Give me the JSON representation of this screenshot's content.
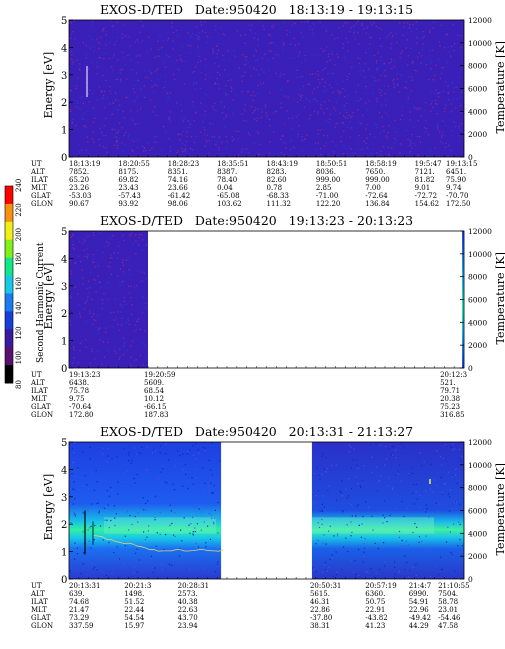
{
  "chart_data": [
    {
      "type": "heatmap",
      "title": "EXOS-D/TED   Date:950420   18:13:19 - 19:13:15",
      "ylabel": "Energy [eV]",
      "y2label": "Temperature [K]",
      "ylim": [
        0,
        5
      ],
      "y2lim": [
        0,
        12000
      ],
      "yticks": [
        "0",
        "1",
        "2",
        "3",
        "4",
        "5"
      ],
      "y2ticks": [
        "0",
        "2000",
        "4000",
        "6000",
        "8000",
        "10000",
        "12000"
      ],
      "coverage": [
        [
          0,
          1
        ]
      ],
      "ephemeris": {
        "labels": [
          "UT",
          "ALT",
          "ILAT",
          "MLT",
          "GLAT",
          "GLON"
        ],
        "columns": [
          [
            "18:13:19",
            "7852.",
            "65.20",
            "23.26",
            "-53.03",
            "90.67"
          ],
          [
            "18:20:55",
            "8175.",
            "69.82",
            "23.43",
            "-57.43",
            "93.92"
          ],
          [
            "18:28:23",
            "8351.",
            "74.16",
            "23.66",
            "-61.42",
            "98.06"
          ],
          [
            "18:35:51",
            "8387.",
            "78.40",
            "0.04",
            "-65.08",
            "103.62"
          ],
          [
            "18:43:19",
            "8283.",
            "82.60",
            "0.78",
            "-68.33",
            "111.32"
          ],
          [
            "18:50:51",
            "8036.",
            "999.00",
            "2.85",
            "-71.00",
            "122.20"
          ],
          [
            "18:58:19",
            "7650.",
            "999.00",
            "7.00",
            "-72.64",
            "136.84"
          ],
          [
            "19:5:47",
            "7121.",
            "81.82",
            "9.01",
            "-72.72",
            "154.62"
          ],
          [
            "19:13:15",
            "6451.",
            "75.90",
            "9.74",
            "-70.70",
            "172.50"
          ]
        ]
      }
    },
    {
      "type": "heatmap",
      "title": "EXOS-D/TED   Date:950420   19:13:23 - 20:13:23",
      "ylabel": "Energy [eV]",
      "y2label": "Temperature [K]",
      "ylim": [
        0,
        5
      ],
      "y2lim": [
        0,
        12000
      ],
      "yticks": [
        "0",
        "1",
        "2",
        "3",
        "4",
        "5"
      ],
      "y2ticks": [
        "0",
        "2000",
        "4000",
        "6000",
        "8000",
        "10000",
        "12000"
      ],
      "coverage": [
        [
          0,
          0.2
        ],
        [
          0.995,
          1
        ]
      ],
      "ephemeris": {
        "labels": [
          "UT",
          "ALT",
          "ILAT",
          "MLT",
          "GLAT",
          "GLON"
        ],
        "columns": [
          [
            "19:13:23",
            "6438.",
            "75.78",
            "9.75",
            "-70.64",
            "172.80"
          ],
          [
            "19:20:59",
            "5609.",
            "68.54",
            "10.12",
            "-66.15",
            "187.83"
          ],
          [
            "20:12:3",
            "521.",
            "79.71",
            "20.38",
            "75.23",
            "316.85"
          ]
        ]
      },
      "colorbar": {
        "label": "Second Harmonic Current",
        "ticks": [
          "80",
          "100",
          "120",
          "140",
          "160",
          "180",
          "200",
          "220",
          "240"
        ],
        "colors": [
          "#000000",
          "#5a1070",
          "#3a1aa0",
          "#1a3cd8",
          "#1a7cf0",
          "#18c8e8",
          "#10e88a",
          "#80f018",
          "#f0f018",
          "#f89010",
          "#ff0000"
        ]
      }
    },
    {
      "type": "heatmap",
      "title": "EXOS-D/TED   Date:950420   20:13:31 - 21:13:27",
      "ylabel": "Energy [eV]",
      "y2label": "Temperature [K]",
      "ylim": [
        0,
        5
      ],
      "y2lim": [
        0,
        12000
      ],
      "yticks": [
        "0",
        "1",
        "2",
        "3",
        "4",
        "5"
      ],
      "y2ticks": [
        "0",
        "2000",
        "4000",
        "6000",
        "8000",
        "10000",
        "12000"
      ],
      "coverage": [
        [
          0,
          0.385
        ],
        [
          0.615,
          1
        ]
      ],
      "ephemeris": {
        "labels": [
          "UT",
          "ALT",
          "ILAT",
          "MLT",
          "GLAT",
          "GLON"
        ],
        "columns": [
          [
            "20:13:31",
            "639.",
            "74.68",
            "21.47",
            "73.29",
            "337.59"
          ],
          [
            "20:21:3",
            "1498.",
            "51.52",
            "22.44",
            "54.54",
            "15.97"
          ],
          [
            "20:28:31",
            "2573.",
            "40.38",
            "22.63",
            "43.70",
            "23.94"
          ],
          [
            "20:50:31",
            "5615.",
            "46.31",
            "22.86",
            "-37.80",
            "38.31"
          ],
          [
            "20:57:19",
            "6360.",
            "50.75",
            "22.91",
            "-43.82",
            "41.23"
          ],
          [
            "21:4:7",
            "6990.",
            "54.91",
            "22.96",
            "-49.42",
            "44.29"
          ],
          [
            "21:10:55",
            "7504.",
            "58.78",
            "23.01",
            "-54.46",
            "47.58"
          ]
        ]
      }
    }
  ]
}
